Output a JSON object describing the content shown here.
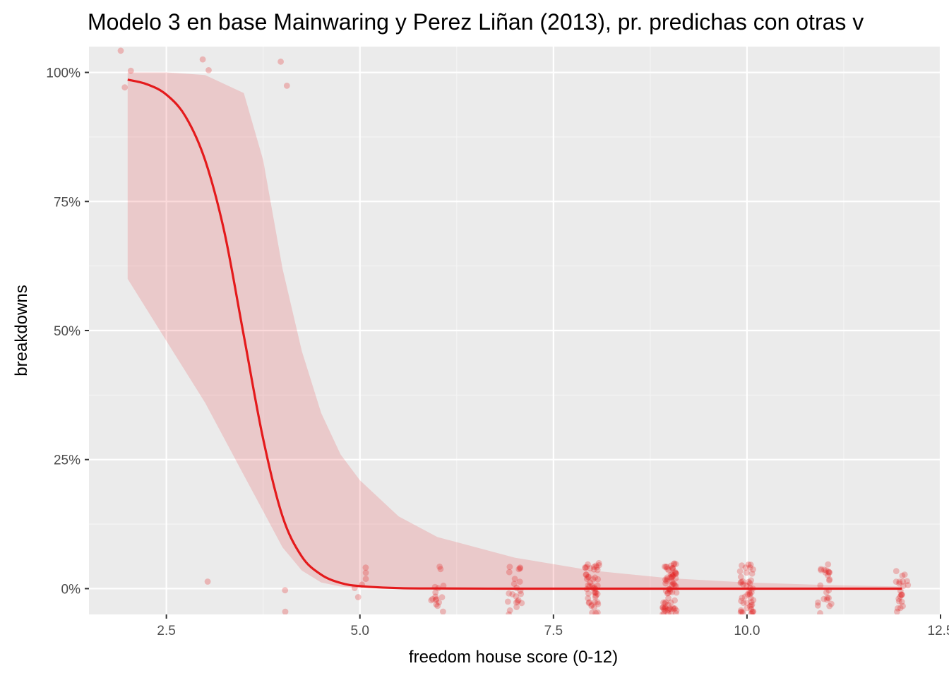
{
  "chart_data": {
    "type": "line",
    "title": "Modelo 3 en base Mainwaring y Perez Liñan (2013), pr. predichas con otras v",
    "xlabel": "freedom house score (0-12)",
    "ylabel": "breakdowns",
    "xlim": [
      1.5,
      12.5
    ],
    "ylim": [
      -0.05,
      1.05
    ],
    "x_ticks": [
      2.5,
      5.0,
      7.5,
      10.0,
      12.5
    ],
    "x_tick_labels": [
      "2.5",
      "5.0",
      "7.5",
      "10.0",
      "12.5"
    ],
    "y_ticks": [
      0,
      0.25,
      0.5,
      0.75,
      1.0
    ],
    "y_tick_labels": [
      "0%",
      "25%",
      "50%",
      "75%",
      "100%"
    ],
    "grid": true,
    "legend": "none",
    "colors": {
      "line": "#e41a1c",
      "ribbon": "#e41a1c",
      "points": "#e41a1c",
      "panel": "#ebebeb",
      "grid_major": "#ffffff",
      "grid_minor": "#f5f5f5"
    },
    "series": [
      {
        "type": "line",
        "x": [
          2.0,
          2.25,
          2.5,
          2.75,
          3.0,
          3.25,
          3.5,
          3.75,
          4.0,
          4.25,
          4.5,
          4.75,
          5.0,
          5.5,
          6.0,
          7.0,
          8.0,
          9.0,
          10.0,
          11.0,
          12.0
        ],
        "y": [
          0.986,
          0.977,
          0.957,
          0.914,
          0.83,
          0.69,
          0.49,
          0.29,
          0.14,
          0.062,
          0.027,
          0.011,
          0.005,
          0.001,
          0.0003,
          0.0,
          0.0,
          0.0,
          0.0,
          0.0,
          0.0
        ]
      },
      {
        "type": "ribbon",
        "x": [
          2.0,
          2.5,
          3.0,
          3.5,
          3.75,
          4.0,
          4.25,
          4.5,
          4.75,
          5.0,
          5.5,
          6.0,
          7.0,
          8.0,
          9.0,
          10.0,
          11.0,
          12.0
        ],
        "ymin": [
          0.6,
          0.48,
          0.36,
          0.22,
          0.15,
          0.08,
          0.035,
          0.012,
          0.004,
          0.001,
          0.0,
          0.0,
          0.0,
          0.0,
          0.0,
          0.0,
          0.0,
          0.0
        ],
        "ymax": [
          1.0,
          1.0,
          0.995,
          0.96,
          0.83,
          0.62,
          0.46,
          0.34,
          0.26,
          0.21,
          0.14,
          0.1,
          0.06,
          0.035,
          0.02,
          0.012,
          0.007,
          0.004
        ]
      },
      {
        "type": "scatter",
        "jitter": {
          "x": 0.09,
          "y": 0.05
        },
        "groups": [
          {
            "x": 2,
            "ys": [
              1,
              1,
              1
            ]
          },
          {
            "x": 3,
            "ys": [
              1,
              1,
              0
            ]
          },
          {
            "x": 4,
            "ys": [
              1,
              1,
              0,
              0
            ]
          },
          {
            "x": 5,
            "n": 6,
            "y": 0
          },
          {
            "x": 6,
            "n": 16,
            "y": 0
          },
          {
            "x": 7,
            "n": 22,
            "y": 0
          },
          {
            "x": 8,
            "n": 48,
            "y": 0
          },
          {
            "x": 9,
            "n": 70,
            "y": 0
          },
          {
            "x": 10,
            "n": 46,
            "y": 0
          },
          {
            "x": 11,
            "n": 24,
            "y": 0
          },
          {
            "x": 12,
            "n": 22,
            "y": 0
          }
        ]
      }
    ]
  }
}
